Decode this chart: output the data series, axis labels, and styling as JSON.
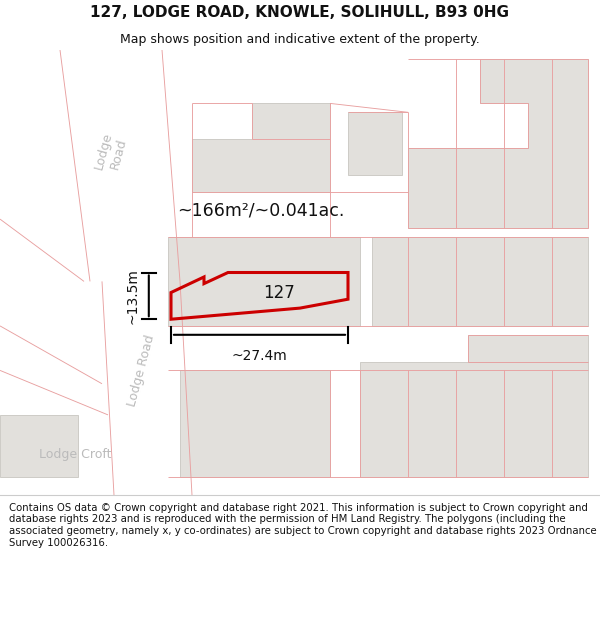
{
  "title": "127, LODGE ROAD, KNOWLE, SOLIHULL, B93 0HG",
  "subtitle": "Map shows position and indicative extent of the property.",
  "footer": "Contains OS data © Crown copyright and database right 2021. This information is subject to Crown copyright and database rights 2023 and is reproduced with the permission of HM Land Registry. The polygons (including the associated geometry, namely x, y co-ordinates) are subject to Crown copyright and database rights 2023 Ordnance Survey 100026316.",
  "area_label": "~166m²/~0.041ac.",
  "width_label": "~27.4m",
  "height_label": "~13.5m",
  "property_label": "127",
  "map_bg": "#f0eeec",
  "road_fill": "#ffffff",
  "building_fill": "#e2e0dc",
  "building_stroke": "#c8c6c0",
  "cad_line_color": "#e8a0a0",
  "property_stroke": "#cc0000",
  "road_label_color": "#bbbbbb",
  "footer_line_color": "#cccccc"
}
